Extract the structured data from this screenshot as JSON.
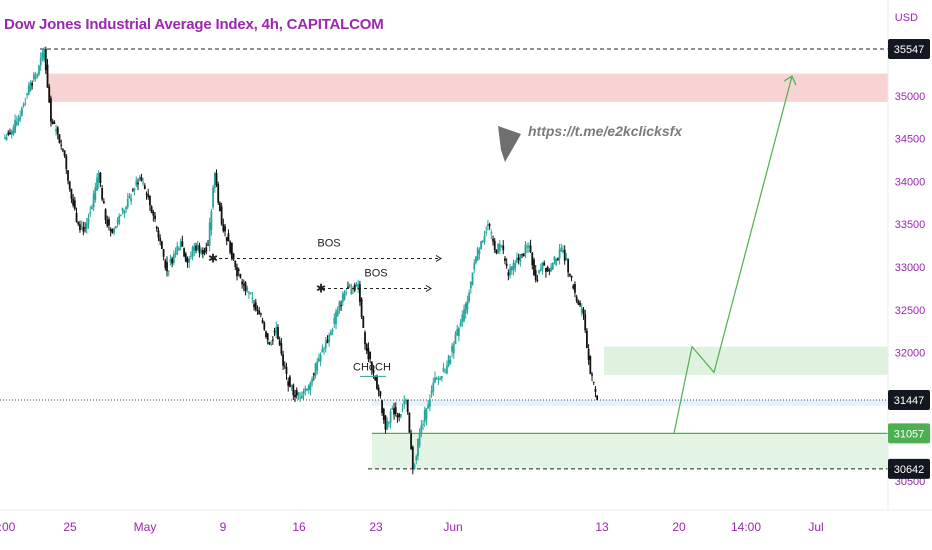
{
  "chart_data": {
    "type": "candlestick",
    "title": "Dow Jones Industrial Average Index, 4h, CAPITALCOM",
    "currency_label": "USD",
    "ylim": [
      30250,
      35850
    ],
    "yticks": [
      30500,
      31000,
      31500,
      32000,
      32500,
      33000,
      33500,
      34000,
      34500,
      35000
    ],
    "xticks": [
      ":00",
      "25",
      "May",
      "9",
      "16",
      "23",
      "Jun",
      "13",
      "20",
      "14:00",
      "Jul"
    ],
    "price_badges": [
      {
        "value": "35547",
        "price": 35547,
        "style": "dark"
      },
      {
        "value": "31447",
        "price": 31447,
        "style": "dark"
      },
      {
        "value": "31057",
        "price": 31057,
        "style": "green"
      },
      {
        "value": "30642",
        "price": 30642,
        "style": "dark"
      }
    ],
    "close_path": [
      34500,
      34550,
      34700,
      34900,
      35150,
      35250,
      35547,
      34700,
      34550,
      34300,
      33800,
      33500,
      33450,
      33700,
      34100,
      33550,
      33400,
      33600,
      33700,
      33900,
      34050,
      33850,
      33600,
      33300,
      32950,
      33150,
      33300,
      33050,
      33250,
      33200,
      33250,
      34100,
      33500,
      33300,
      33000,
      32800,
      32700,
      32500,
      32350,
      32100,
      32300,
      31850,
      31600,
      31500,
      31550,
      31650,
      31900,
      32050,
      32250,
      32500,
      32700,
      32750,
      32800,
      32100,
      31800,
      31550,
      31100,
      31350,
      31250,
      31450,
      30642,
      31050,
      31350,
      31650,
      31700,
      31850,
      32100,
      32350,
      32600,
      33050,
      33300,
      33500,
      33200,
      33250,
      32900,
      33050,
      33150,
      33250,
      32850,
      33050,
      32950,
      33100,
      33200,
      32900,
      32600,
      32450,
      31750,
      31447
    ],
    "annotations": {
      "bos_labels": [
        "BOS",
        "BOS"
      ],
      "choch_label": "CHoCH",
      "link_text": "https://t.me/e2kclicksfx"
    },
    "zones": [
      {
        "name": "supply-zone",
        "from": 34930,
        "to": 35260,
        "color": "#f7d3d3"
      },
      {
        "name": "target-demand-zone",
        "from": 31740,
        "to": 32070,
        "color": "#dff2df"
      },
      {
        "name": "demand-zone",
        "from": 30642,
        "to": 31057,
        "color": "#e4f4e4"
      },
      {
        "name": "current-zone",
        "from": 31380,
        "to": 31447,
        "color": "#e6f2fb"
      }
    ],
    "projection": [
      31057,
      32070,
      31770,
      35230
    ],
    "colors": {
      "up": "#26a69a",
      "down": "#111111",
      "accent": "#9c27b0",
      "green": "#4caf50"
    }
  }
}
